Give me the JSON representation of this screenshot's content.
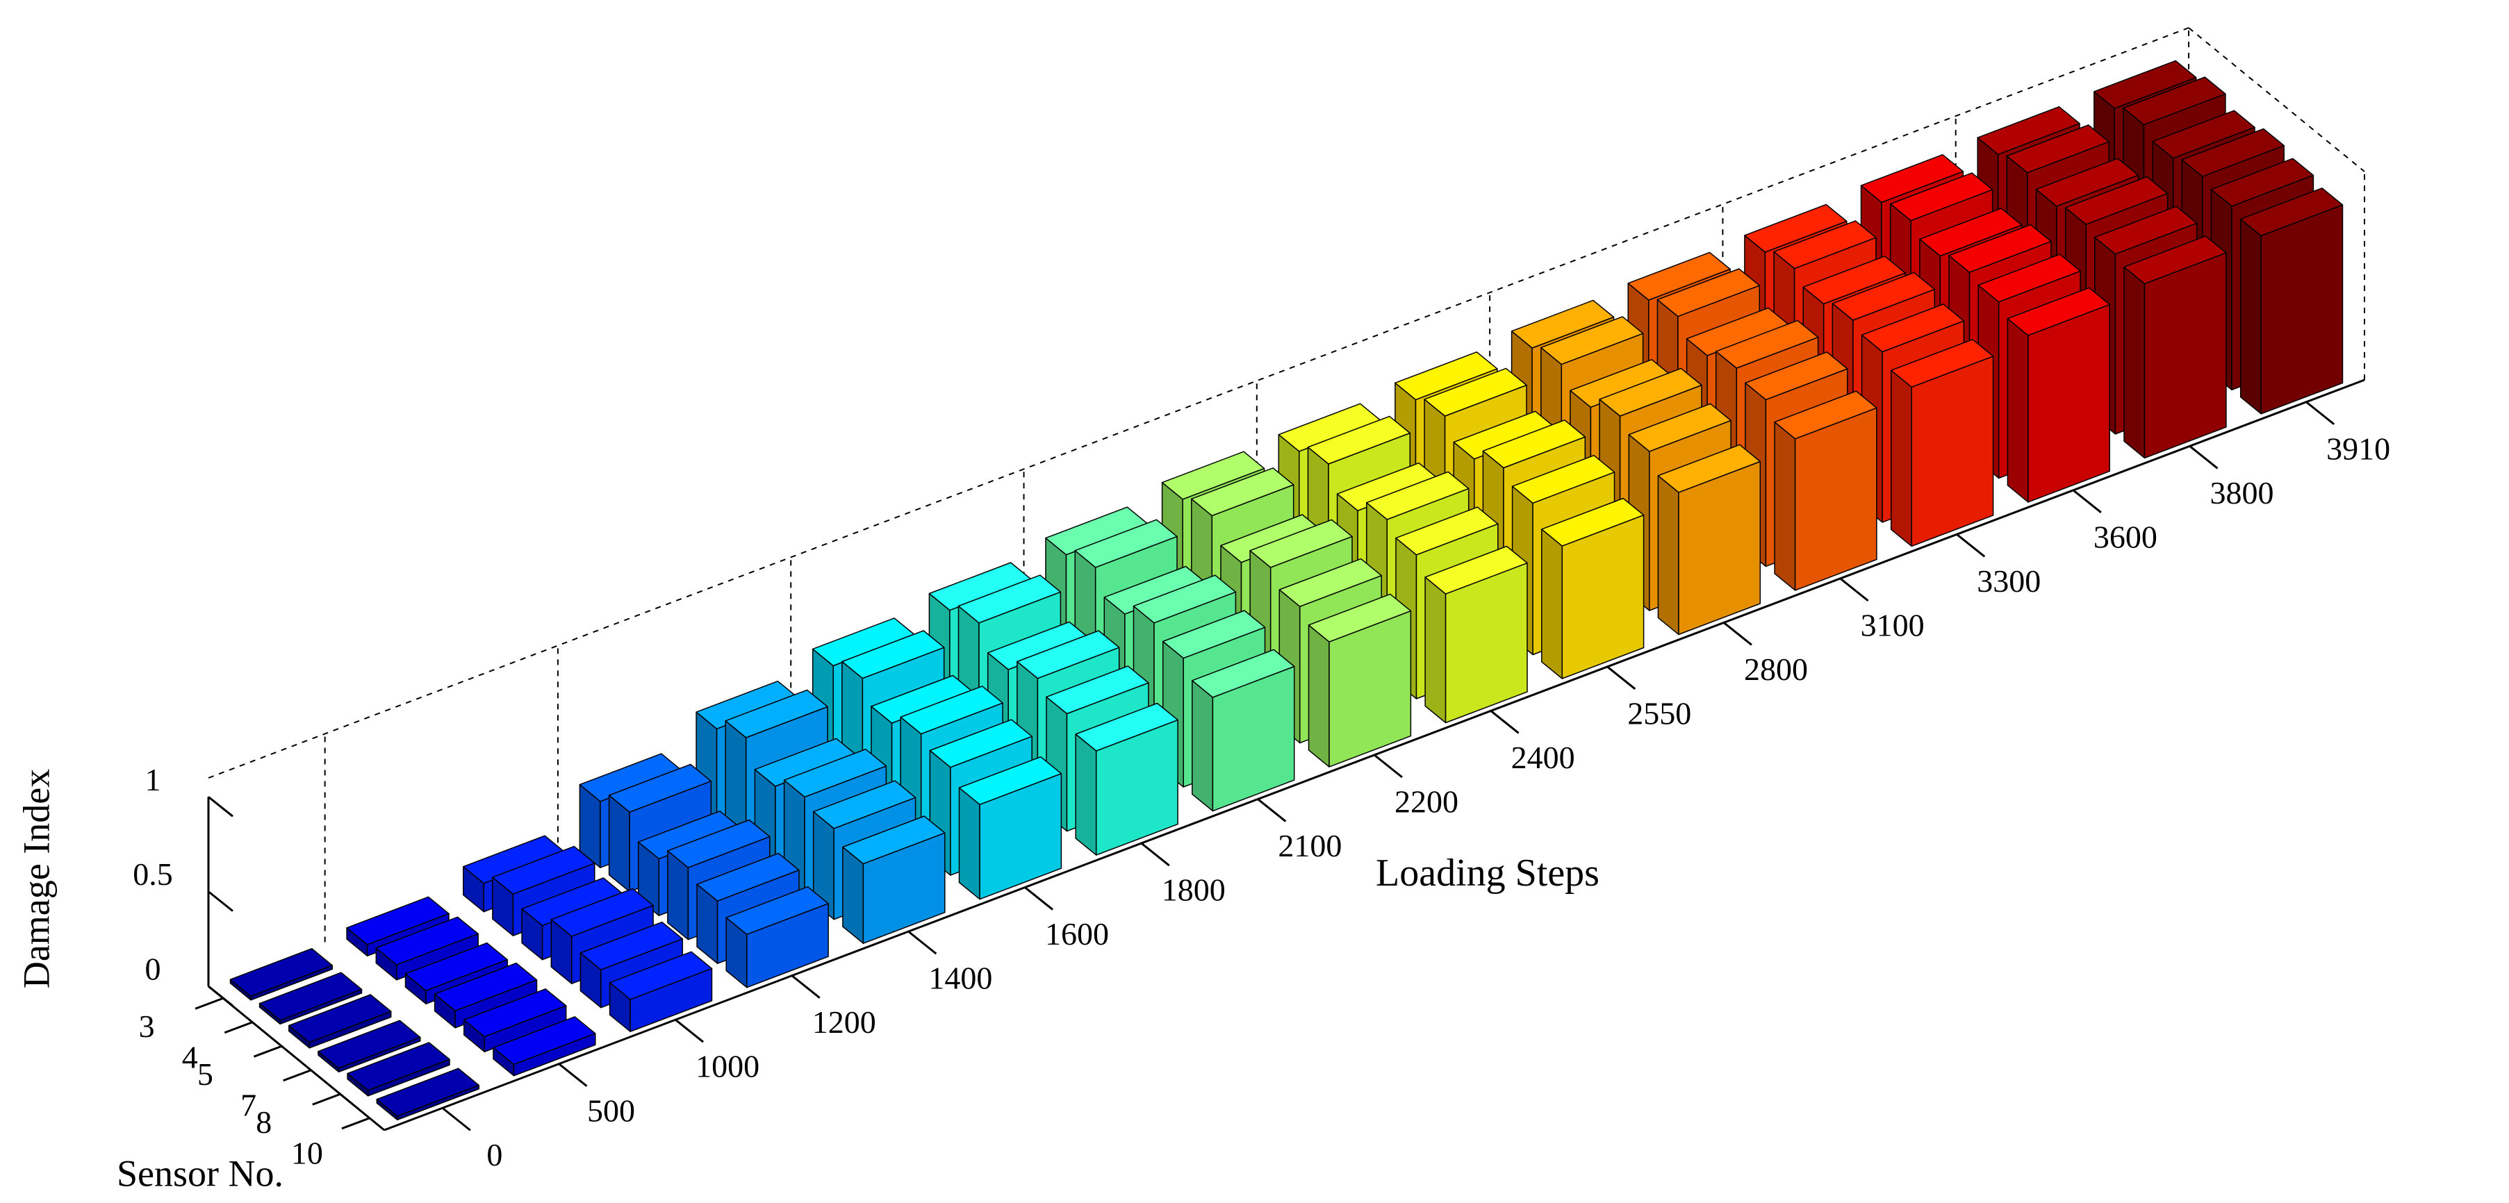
{
  "chart_data": {
    "type": "bar3d",
    "x_label": "Loading Steps",
    "y_label": "Sensor No.",
    "z_label": "Damage Index",
    "x_categories": [
      0,
      500,
      1000,
      1200,
      1400,
      1600,
      1800,
      2100,
      2200,
      2400,
      2550,
      2800,
      3100,
      3300,
      3600,
      3800,
      3910
    ],
    "y_categories": [
      3,
      4,
      5,
      7,
      8,
      10
    ],
    "colors": [
      "#00009f",
      "#0000df",
      "#0020ff",
      "#0060ff",
      "#00a0ff",
      "#00e0ff",
      "#20ffdf",
      "#60ff9f",
      "#a0ff60",
      "#e0ff20",
      "#ffdf00",
      "#ffa000",
      "#ff6000",
      "#ff2000",
      "#df0000",
      "#a00000",
      "#800000"
    ],
    "values": [
      [
        0.02,
        0.02,
        0.03,
        0.02,
        0.03,
        0.02
      ],
      [
        0.06,
        0.08,
        0.07,
        0.09,
        0.08,
        0.06
      ],
      [
        0.15,
        0.22,
        0.18,
        0.25,
        0.2,
        0.17
      ],
      [
        0.35,
        0.42,
        0.3,
        0.38,
        0.33,
        0.28
      ],
      [
        0.5,
        0.58,
        0.45,
        0.52,
        0.48,
        0.42
      ],
      [
        0.6,
        0.66,
        0.55,
        0.62,
        0.57,
        0.5
      ],
      [
        0.66,
        0.72,
        0.6,
        0.68,
        0.62,
        0.55
      ],
      [
        0.72,
        0.78,
        0.66,
        0.74,
        0.68,
        0.6
      ],
      [
        0.78,
        0.82,
        0.7,
        0.8,
        0.72,
        0.66
      ],
      [
        0.8,
        0.86,
        0.74,
        0.82,
        0.76,
        0.68
      ],
      [
        0.84,
        0.88,
        0.78,
        0.86,
        0.8,
        0.7
      ],
      [
        0.88,
        0.92,
        0.82,
        0.9,
        0.84,
        0.75
      ],
      [
        0.9,
        0.94,
        0.86,
        0.92,
        0.88,
        0.8
      ],
      [
        0.92,
        0.96,
        0.9,
        0.94,
        0.9,
        0.84
      ],
      [
        0.95,
        0.98,
        0.92,
        0.96,
        0.93,
        0.88
      ],
      [
        0.97,
        1.0,
        0.95,
        0.98,
        0.95,
        0.92
      ],
      [
        0.98,
        1.02,
        0.97,
        1.0,
        0.97,
        0.94
      ]
    ],
    "zlim": [
      0,
      1.1
    ],
    "zticks": [
      0,
      0.5,
      1
    ]
  }
}
